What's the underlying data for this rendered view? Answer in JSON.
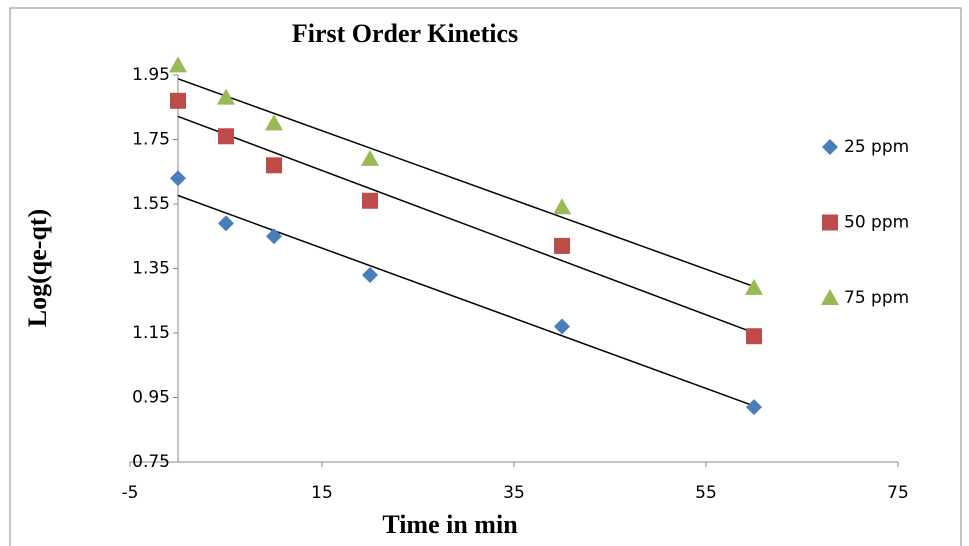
{
  "chart_data": {
    "type": "scatter",
    "title": "First Order Kinetics",
    "x_label": "Time in min",
    "y_label": "Log(qe-qt)",
    "x": [
      0,
      5,
      10,
      20,
      40,
      60
    ],
    "series": [
      {
        "name": "25 ppm",
        "color": "#4a7ebb",
        "marker": "diamond",
        "values": [
          1.63,
          1.49,
          1.45,
          1.33,
          1.17,
          0.92
        ]
      },
      {
        "name": "50 ppm",
        "color": "#be4b48",
        "marker": "square",
        "values": [
          1.87,
          1.76,
          1.67,
          1.56,
          1.42,
          1.14
        ]
      },
      {
        "name": "75 ppm",
        "color": "#98b954",
        "marker": "triangle",
        "values": [
          1.98,
          1.88,
          1.8,
          1.69,
          1.54,
          1.29
        ]
      }
    ],
    "trendline": "linear",
    "trendline_color": "#000000",
    "xlim": [
      -5,
      75
    ],
    "xticks": [
      -5,
      15,
      35,
      55,
      75
    ],
    "ylim": [
      0.75,
      1.95
    ],
    "yticks": [
      0.75,
      0.95,
      1.15,
      1.35,
      1.55,
      1.75,
      1.95
    ],
    "grid": false,
    "legend": "right"
  }
}
